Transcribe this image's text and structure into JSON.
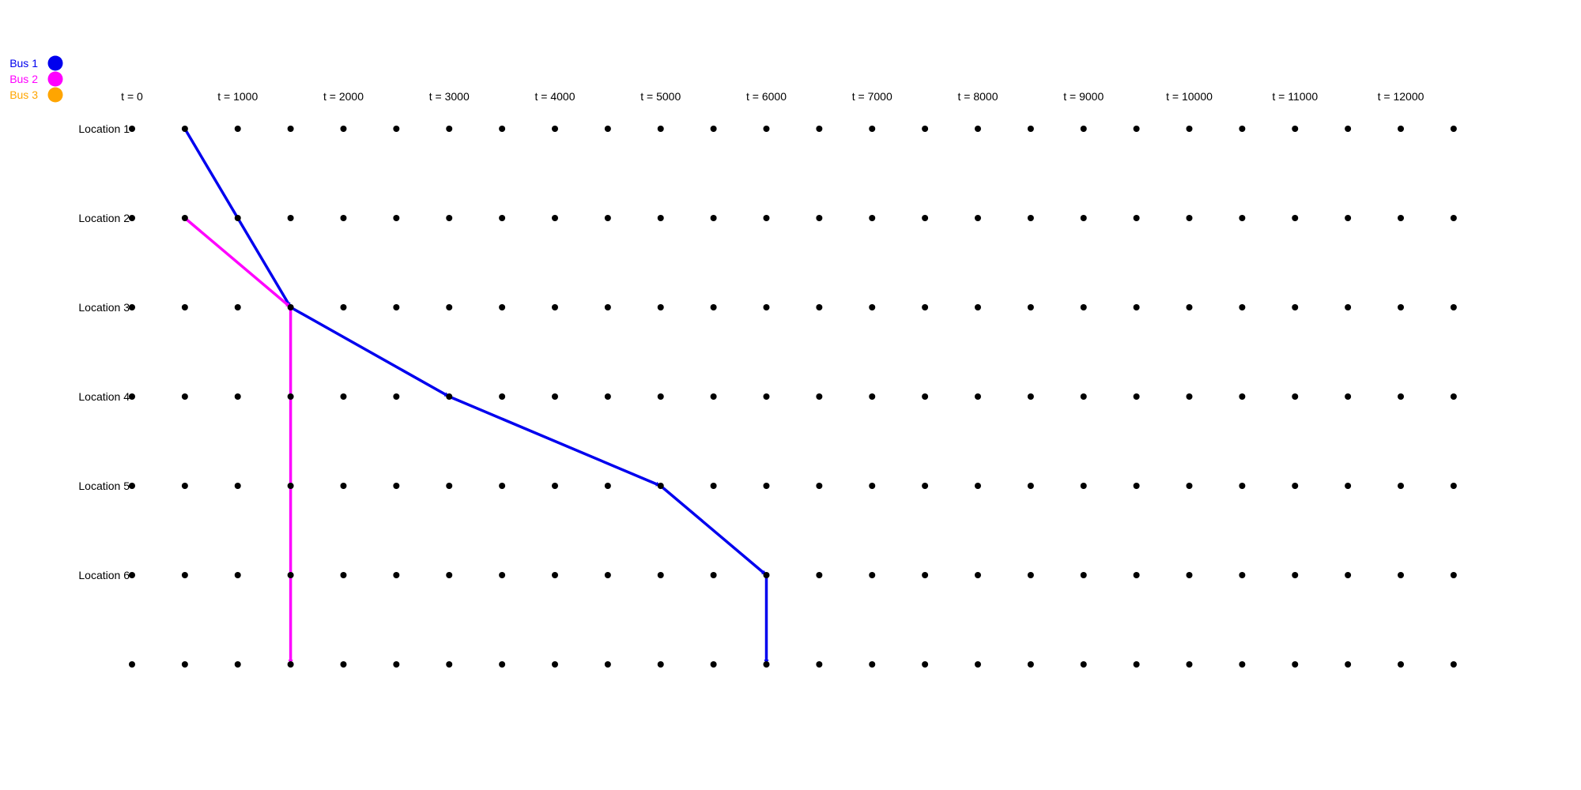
{
  "legend": {
    "entries": [
      {
        "label": "Bus 1",
        "color": "#0000ee"
      },
      {
        "label": "Bus 2",
        "color": "#ff00ff"
      },
      {
        "label": "Bus 3",
        "color": "#ffa500"
      }
    ]
  },
  "chart_data": {
    "type": "time-space-network",
    "time_labels": [
      "t = 0",
      "t = 1000",
      "t = 2000",
      "t = 3000",
      "t = 4000",
      "t = 5000",
      "t = 6000",
      "t = 7000",
      "t = 8000",
      "t = 9000",
      "t = 10000",
      "t = 11000",
      "t = 12000"
    ],
    "time_step": 500,
    "time_max": 12500,
    "row_labels": [
      "Location 1",
      "Location 2",
      "Location 3",
      "Location 4",
      "Location 5",
      "Location 6",
      ""
    ],
    "node_color": "#000000",
    "routes": [
      {
        "name": "Bus 1",
        "color": "#0000ee",
        "stops": [
          {
            "t": 500,
            "row": 0
          },
          {
            "t": 1500,
            "row": 2
          },
          {
            "t": 3000,
            "row": 3
          },
          {
            "t": 5000,
            "row": 4
          },
          {
            "t": 6000,
            "row": 5
          },
          {
            "t": 6000,
            "row": 6
          }
        ]
      },
      {
        "name": "Bus 2",
        "color": "#ff00ff",
        "stops": [
          {
            "t": 500,
            "row": 1
          },
          {
            "t": 1500,
            "row": 2
          },
          {
            "t": 1500,
            "row": 6
          }
        ]
      }
    ]
  }
}
